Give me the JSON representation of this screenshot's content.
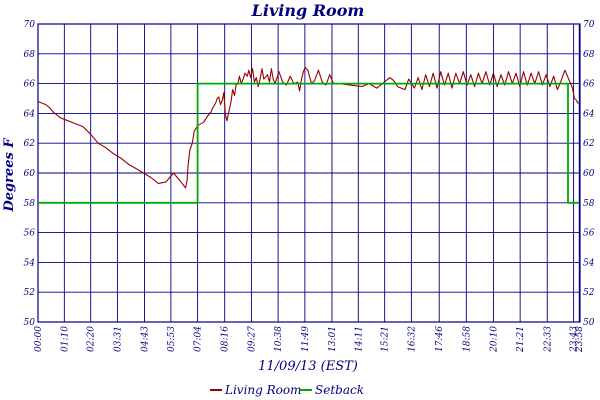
{
  "chart_data": {
    "type": "line",
    "title": "Living Room",
    "xlabel": "11/09/13 (EST)",
    "ylabel": "Degrees F",
    "ylim": [
      50,
      70
    ],
    "yticks": [
      50,
      52,
      54,
      56,
      58,
      60,
      62,
      64,
      66,
      68,
      70
    ],
    "xlim": [
      0,
      1440
    ],
    "xtick_labels": [
      "00:00",
      "01:10",
      "02:20",
      "03:31",
      "04:43",
      "05:53",
      "07:04",
      "08:16",
      "09:27",
      "10:38",
      "11:49",
      "13:01",
      "14:11",
      "15:21",
      "16:32",
      "17:46",
      "18:58",
      "20:10",
      "21:21",
      "22:33",
      "23:43",
      "23:58"
    ],
    "xtick_minutes": [
      0,
      70,
      140,
      211,
      283,
      353,
      424,
      496,
      567,
      638,
      709,
      781,
      851,
      921,
      992,
      1066,
      1138,
      1210,
      1281,
      1353,
      1423,
      1438
    ],
    "grid": true,
    "legend_position": "bottom",
    "colors": {
      "living_room": "#990000",
      "setback": "#00aa00",
      "grid": "#000080"
    },
    "series": [
      {
        "name": "Living Room",
        "x": [
          0,
          10,
          20,
          30,
          40,
          60,
          80,
          100,
          120,
          140,
          160,
          180,
          200,
          220,
          240,
          260,
          280,
          300,
          320,
          340,
          360,
          380,
          392,
          396,
          398,
          403,
          410,
          415,
          425,
          440,
          450,
          460,
          465,
          472,
          476,
          480,
          485,
          490,
          494,
          498,
          502,
          507,
          513,
          517,
          522,
          526,
          531,
          535,
          540,
          545,
          550,
          556,
          560,
          565,
          570,
          575,
          580,
          585,
          590,
          595,
          600,
          610,
          615,
          620,
          625,
          630,
          640,
          650,
          660,
          670,
          680,
          690,
          695,
          700,
          705,
          710,
          717,
          722,
          727,
          735,
          745,
          755,
          765,
          775,
          785,
          800,
          830,
          860,
          880,
          900,
          920,
          935,
          945,
          955,
          965,
          975,
          985,
          1000,
          1010,
          1020,
          1030,
          1040,
          1050,
          1060,
          1070,
          1080,
          1090,
          1100,
          1110,
          1120,
          1130,
          1140,
          1150,
          1160,
          1170,
          1180,
          1190,
          1200,
          1210,
          1220,
          1230,
          1240,
          1250,
          1260,
          1270,
          1280,
          1290,
          1300,
          1310,
          1320,
          1330,
          1340,
          1350,
          1360,
          1370,
          1380,
          1390,
          1400,
          1410,
          1420,
          1425,
          1430,
          1434,
          1438
        ],
        "y": [
          64.8,
          64.7,
          64.6,
          64.4,
          64.1,
          63.7,
          63.5,
          63.3,
          63.1,
          62.6,
          62.0,
          61.7,
          61.3,
          61.0,
          60.6,
          60.3,
          60.0,
          59.7,
          59.3,
          59.4,
          60.0,
          59.4,
          59.0,
          59.5,
          60.3,
          61.5,
          62.0,
          62.8,
          63.2,
          63.4,
          63.8,
          64.1,
          64.4,
          64.7,
          65.0,
          65.1,
          64.6,
          64.9,
          65.4,
          63.9,
          63.5,
          64.1,
          64.8,
          65.6,
          65.2,
          65.9,
          66.0,
          66.5,
          66.0,
          66.3,
          66.7,
          66.5,
          66.9,
          66.4,
          67.0,
          66.1,
          66.4,
          65.8,
          66.3,
          67.0,
          66.3,
          66.6,
          66.1,
          67.0,
          66.3,
          66.0,
          66.8,
          66.1,
          65.9,
          66.5,
          66.0,
          66.1,
          65.5,
          66.3,
          66.8,
          67.1,
          66.9,
          66.4,
          66.0,
          66.2,
          66.9,
          66.1,
          65.9,
          66.6,
          66.0,
          66.0,
          65.9,
          65.8,
          66.0,
          65.7,
          66.1,
          66.4,
          66.2,
          65.8,
          65.7,
          65.6,
          66.3,
          65.7,
          66.4,
          65.6,
          66.6,
          65.8,
          66.7,
          65.7,
          66.8,
          65.9,
          66.7,
          65.7,
          66.7,
          66.0,
          66.8,
          65.9,
          66.6,
          65.8,
          66.7,
          66.0,
          66.8,
          65.9,
          66.7,
          65.8,
          66.6,
          65.9,
          66.8,
          66.0,
          66.7,
          65.8,
          66.8,
          65.9,
          66.7,
          66.0,
          66.8,
          65.9,
          66.6,
          65.8,
          66.5,
          65.6,
          66.2,
          66.9,
          66.3,
          65.7,
          65.0,
          64.9,
          64.7,
          64.7
        ]
      },
      {
        "name": "Setback",
        "x": [
          0,
          424,
          424,
          1408,
          1408,
          1438
        ],
        "y": [
          58,
          58,
          66,
          66,
          58,
          58
        ]
      }
    ]
  }
}
